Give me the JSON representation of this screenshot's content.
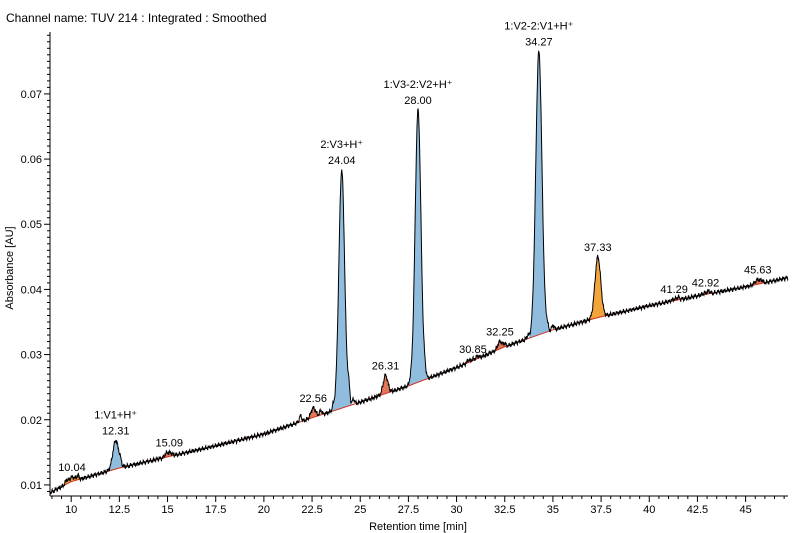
{
  "header": {
    "channel": "Channel name: TUV 214 : Integrated : Smoothed"
  },
  "chart_data": {
    "type": "line",
    "title": "",
    "xlabel": "Retention time [min]",
    "ylabel": "Absorbance [AU]",
    "xlim": [
      8.9,
      47.2
    ],
    "ylim": [
      0.0083,
      0.0795
    ],
    "x_ticks": [
      10,
      12.5,
      15,
      17.5,
      20,
      22.5,
      25,
      27.5,
      30,
      32.5,
      35,
      37.5,
      40,
      42.5,
      45
    ],
    "x_tick_labels": [
      "10",
      "12.5",
      "15",
      "17.5",
      "20",
      "22.5",
      "25",
      "27.5",
      "30",
      "32.5",
      "35",
      "37.5",
      "40",
      "42.5",
      "45"
    ],
    "y_ticks": [
      0.01,
      0.02,
      0.03,
      0.04,
      0.05,
      0.06,
      0.07
    ],
    "y_tick_labels": [
      "0.01",
      "0.02",
      "0.03",
      "0.04",
      "0.05",
      "0.06",
      "0.07"
    ],
    "grid": false,
    "colors": {
      "trace": "#000000",
      "labeled_peak_fill": "#8ab9dc",
      "unlabeled_peak_fill": "#f0a030",
      "minor_peak_fill": "#e07050",
      "baseline": "#d03020"
    },
    "baseline": {
      "x": [
        8.9,
        10,
        12.5,
        15,
        17.5,
        20,
        22.5,
        25,
        27.5,
        30,
        32.5,
        35,
        37.5,
        40,
        42.5,
        45,
        47.2
      ],
      "y": [
        0.0088,
        0.0105,
        0.0126,
        0.0143,
        0.016,
        0.0178,
        0.0203,
        0.0227,
        0.0252,
        0.028,
        0.0312,
        0.0338,
        0.0358,
        0.0375,
        0.039,
        0.0404,
        0.0418
      ]
    },
    "peaks": [
      {
        "rt": 10.04,
        "apex": 0.0112,
        "width": 0.15,
        "fill": "#f0a030",
        "label_rt": "10.04",
        "label_name": ""
      },
      {
        "rt": 12.31,
        "apex": 0.0168,
        "width": 0.15,
        "fill": "#8ab9dc",
        "label_rt": "12.31",
        "label_name": "1:V1+H⁺"
      },
      {
        "rt": 15.09,
        "apex": 0.015,
        "width": 0.13,
        "fill": "#e07050",
        "label_rt": "15.09",
        "label_name": ""
      },
      {
        "rt": 22.56,
        "apex": 0.0218,
        "width": 0.12,
        "fill": "#e07050",
        "label_rt": "22.56",
        "label_name": ""
      },
      {
        "rt": 24.04,
        "apex": 0.0583,
        "width": 0.15,
        "fill": "#8ab9dc",
        "label_rt": "24.04",
        "label_name": "2:V3+H⁺"
      },
      {
        "rt": 26.31,
        "apex": 0.0268,
        "width": 0.12,
        "fill": "#e07050",
        "label_rt": "26.31",
        "label_name": ""
      },
      {
        "rt": 28.0,
        "apex": 0.0675,
        "width": 0.15,
        "fill": "#8ab9dc",
        "label_rt": "28.00",
        "label_name": "1:V3-2:V2+H⁺"
      },
      {
        "rt": 30.85,
        "apex": 0.0293,
        "width": 0.12,
        "fill": "#e07050",
        "label_rt": "30.85",
        "label_name": ""
      },
      {
        "rt": 32.25,
        "apex": 0.032,
        "width": 0.12,
        "fill": "#e07050",
        "label_rt": "32.25",
        "label_name": ""
      },
      {
        "rt": 34.27,
        "apex": 0.0765,
        "width": 0.16,
        "fill": "#8ab9dc",
        "label_rt": "34.27",
        "label_name": "1:V2-2:V1+H⁺"
      },
      {
        "rt": 37.33,
        "apex": 0.045,
        "width": 0.15,
        "fill": "#f0a030",
        "label_rt": "37.33",
        "label_name": ""
      },
      {
        "rt": 41.29,
        "apex": 0.0385,
        "width": 0.14,
        "fill": "#e07050",
        "label_rt": "41.29",
        "label_name": ""
      },
      {
        "rt": 42.92,
        "apex": 0.0395,
        "width": 0.14,
        "fill": "#e07050",
        "label_rt": "42.92",
        "label_name": ""
      },
      {
        "rt": 45.63,
        "apex": 0.0415,
        "width": 0.14,
        "fill": "#e07050",
        "label_rt": "45.63",
        "label_name": ""
      }
    ],
    "minor_bumps": [
      {
        "rt": 9.75,
        "h": 0.0006
      },
      {
        "rt": 10.35,
        "h": 0.0006
      },
      {
        "rt": 12.55,
        "h": 0.0006
      },
      {
        "rt": 14.9,
        "h": 0.0004
      },
      {
        "rt": 21.9,
        "h": 0.0009
      },
      {
        "rt": 22.95,
        "h": 0.0007
      },
      {
        "rt": 23.6,
        "h": 0.0007
      },
      {
        "rt": 24.4,
        "h": 0.0025
      },
      {
        "rt": 24.65,
        "h": 0.0008
      },
      {
        "rt": 27.6,
        "h": 0.0005
      },
      {
        "rt": 28.35,
        "h": 0.0011
      },
      {
        "rt": 30.6,
        "h": 0.0004
      },
      {
        "rt": 31.1,
        "h": 0.0004
      },
      {
        "rt": 32.5,
        "h": 0.0004
      },
      {
        "rt": 33.7,
        "h": 0.0005
      },
      {
        "rt": 34.7,
        "h": 0.0009
      },
      {
        "rt": 35.0,
        "h": 0.0007
      },
      {
        "rt": 41.5,
        "h": 0.0004
      },
      {
        "rt": 43.1,
        "h": 0.0003
      },
      {
        "rt": 45.85,
        "h": 0.0003
      }
    ]
  }
}
